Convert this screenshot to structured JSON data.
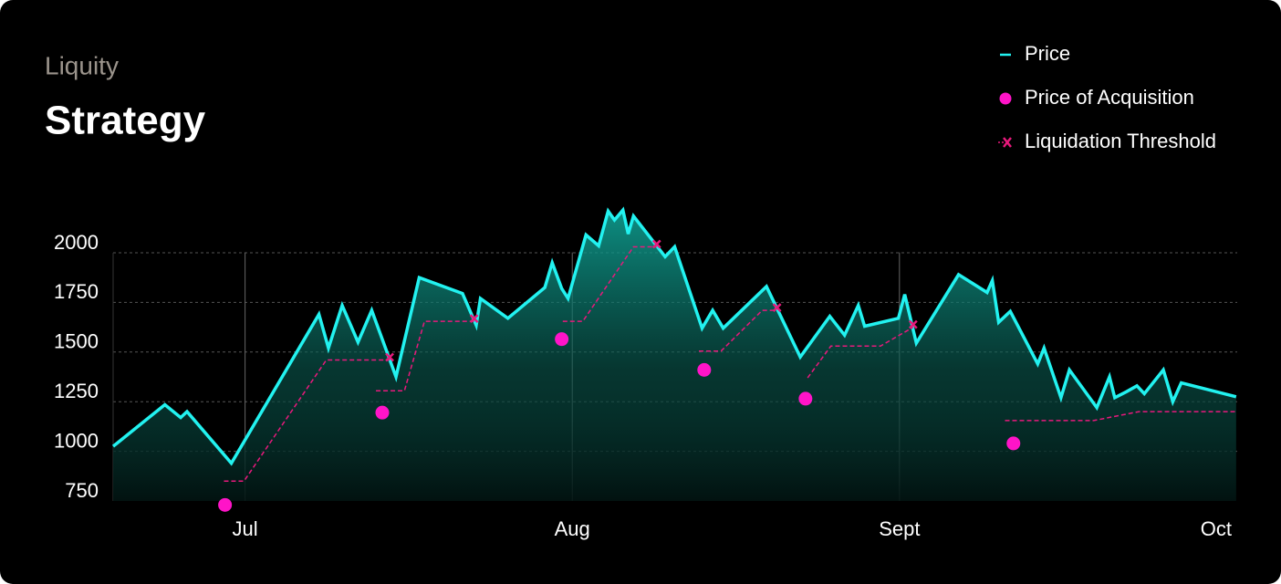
{
  "chart_data": {
    "type": "line",
    "subtitle": "Liquity",
    "title": "Strategy",
    "xlim": [
      -12.5,
      94
    ],
    "xticks": [
      {
        "value": 0,
        "label": "Jul"
      },
      {
        "value": 31,
        "label": "Aug"
      },
      {
        "value": 62,
        "label": "Sept"
      },
      {
        "value": 92,
        "label": "Oct"
      }
    ],
    "ylim": [
      750,
      2250
    ],
    "yticks": [
      750,
      1000,
      1250,
      1500,
      1750,
      2000
    ],
    "grid": true,
    "legend": "top-right",
    "series": [
      {
        "name": "Price",
        "type": "area",
        "color": "#22f2f0",
        "x": [
          -12.5,
          -7.6,
          -6.1,
          -5.5,
          -1.3,
          7.0,
          7.9,
          9.2,
          10.7,
          12.0,
          14.3,
          16.5,
          20.6,
          21.9,
          22.3,
          24.9,
          28.4,
          29.1,
          30.0,
          30.6,
          32.3,
          33.5,
          34.4,
          35.0,
          35.8,
          36.3,
          36.8,
          39.8,
          40.7,
          43.3,
          44.3,
          45.3,
          49.4,
          52.6,
          55.4,
          56.8,
          58.1,
          58.7,
          61.9,
          62.5,
          63.6,
          67.6,
          70.3,
          70.8,
          71.4,
          72.5,
          75.1,
          75.7,
          77.3,
          78.1,
          80.7,
          81.9,
          82.4,
          83.5,
          84.5,
          85.2,
          87.0,
          87.9,
          88.7,
          93.9
        ],
        "values": [
          1025,
          1235,
          1170,
          1200,
          940,
          1690,
          1520,
          1735,
          1550,
          1710,
          1375,
          1875,
          1795,
          1635,
          1770,
          1670,
          1825,
          1950,
          1820,
          1770,
          2090,
          2035,
          2210,
          2165,
          2215,
          2095,
          2185,
          1980,
          2030,
          1620,
          1710,
          1620,
          1830,
          1475,
          1680,
          1585,
          1735,
          1630,
          1670,
          1790,
          1545,
          1890,
          1800,
          1860,
          1650,
          1705,
          1440,
          1520,
          1270,
          1410,
          1220,
          1375,
          1270,
          1300,
          1330,
          1290,
          1410,
          1250,
          1345,
          1275
        ]
      },
      {
        "name": "Price of Acquisition",
        "type": "scatter",
        "color": "#ff14c8",
        "x": [
          -1.9,
          13.0,
          30.0,
          43.5,
          53.1,
          72.8
        ],
        "values": [
          730,
          1195,
          1565,
          1410,
          1265,
          1040
        ]
      },
      {
        "name": "Liquidation Threshold",
        "type": "dashed",
        "color": "#e8197c",
        "x": [
          -2.0,
          -0.1,
          7.7,
          13.7,
          null,
          12.4,
          15.1,
          17.0,
          21.7,
          null,
          30.1,
          32.0,
          36.8,
          39.0,
          null,
          43.0,
          45.1,
          49.0,
          50.4,
          null,
          53.3,
          55.5,
          60.2,
          63.3,
          null,
          72.0,
          80.4,
          84.7,
          93.9
        ],
        "values": [
          850,
          850,
          1460,
          1460,
          null,
          1305,
          1305,
          1655,
          1655,
          null,
          1655,
          1655,
          2030,
          2030,
          null,
          1505,
          1505,
          1710,
          1710,
          null,
          1370,
          1530,
          1530,
          1625,
          null,
          1155,
          1155,
          1200,
          1200
        ]
      }
    ]
  }
}
